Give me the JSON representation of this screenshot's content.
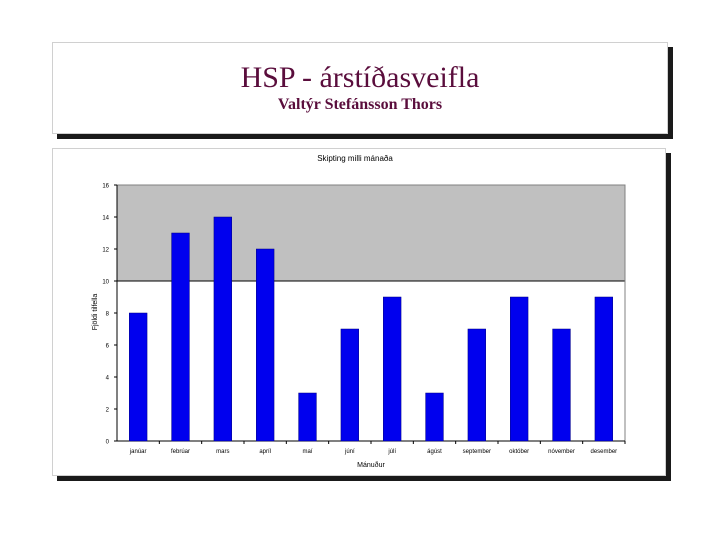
{
  "slide": {
    "title": "HSP - árstíðasveifla",
    "subtitle": "Valtýr Stefánsson Thors"
  },
  "colors": {
    "title": "#5a0d3c",
    "plot_background": "#c0c0c0",
    "bar": "#0000ee"
  },
  "chart_data": {
    "type": "bar",
    "title": "Skipting milli mánaða",
    "xlabel": "Mánuður",
    "ylabel": "Fjöldi tilfella",
    "categories": [
      "janúar",
      "febrúar",
      "mars",
      "apríl",
      "maí",
      "júní",
      "júlí",
      "ágúst",
      "september",
      "október",
      "nóvember",
      "desember"
    ],
    "values": [
      8,
      13,
      14,
      12,
      3,
      7,
      9,
      3,
      7,
      9,
      7,
      9
    ],
    "ylim": [
      0,
      16
    ],
    "yticks": [
      0,
      2,
      4,
      6,
      8,
      10,
      12,
      14,
      16
    ],
    "reference_line": 10,
    "grid": false,
    "legend": "none"
  }
}
